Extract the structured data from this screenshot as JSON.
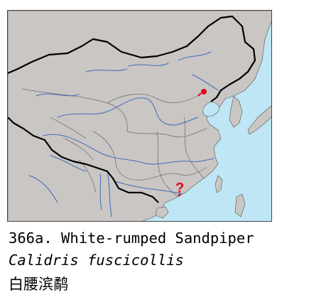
{
  "map": {
    "colors": {
      "sea": "#bfe6f4",
      "land": "#c9c6c3",
      "border": "#000000",
      "province": "#6b6b6b",
      "river": "#3f6db8",
      "marker": "#e8001c"
    },
    "markers": {
      "record_dot": "red-dot",
      "uncertain_record": "?"
    }
  },
  "caption": {
    "common_name": "366a. White-rumped Sandpiper",
    "scientific_name": "Calidris fuscicollis",
    "chinese_name": "白腰滨鹬"
  }
}
